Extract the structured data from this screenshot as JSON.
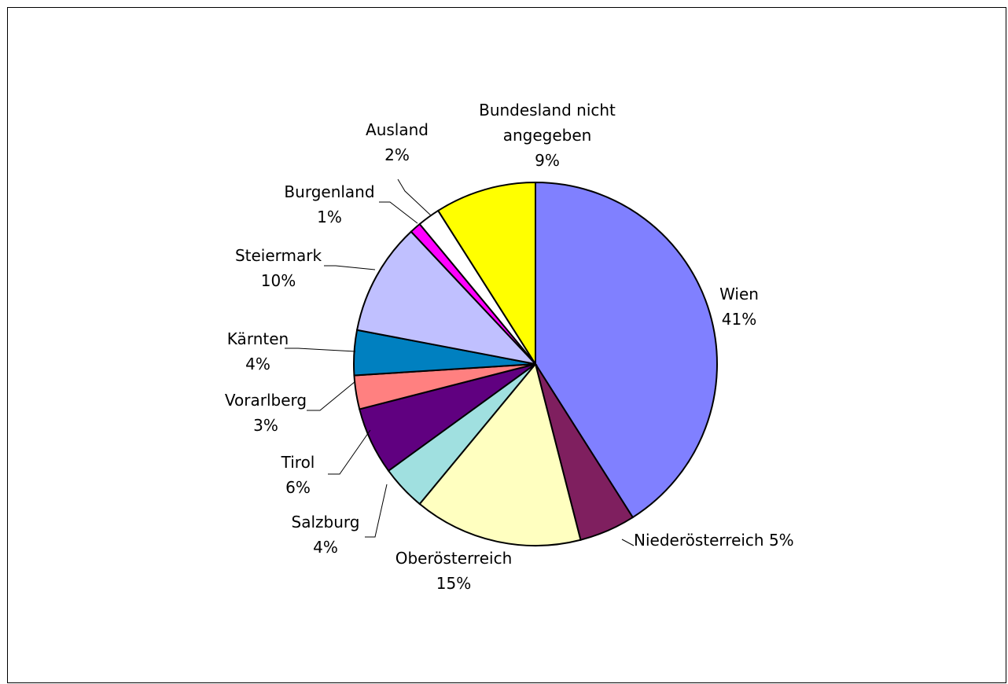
{
  "chart_data": {
    "type": "pie",
    "slices": [
      {
        "name": "Wien",
        "label_lines": [
          "Wien",
          "41%"
        ],
        "value": 41,
        "color": "#8080FF"
      },
      {
        "name": "Niederösterreich",
        "label_lines": [
          "Niederösterreich 5%"
        ],
        "value": 5,
        "color": "#7F1F5F"
      },
      {
        "name": "Oberösterreich",
        "label_lines": [
          "Oberösterreich",
          "15%"
        ],
        "value": 15,
        "color": "#FFFFC0"
      },
      {
        "name": "Salzburg",
        "label_lines": [
          "Salzburg",
          "4%"
        ],
        "value": 4,
        "color": "#A0E0E0"
      },
      {
        "name": "Tirol",
        "label_lines": [
          "Tirol",
          "6%"
        ],
        "value": 6,
        "color": "#600080"
      },
      {
        "name": "Vorarlberg",
        "label_lines": [
          "Vorarlberg",
          "3%"
        ],
        "value": 3,
        "color": "#FF8080"
      },
      {
        "name": "Kärnten",
        "label_lines": [
          "Kärnten",
          "4%"
        ],
        "value": 4,
        "color": "#0080C0"
      },
      {
        "name": "Steiermark",
        "label_lines": [
          "Steiermark",
          "10%"
        ],
        "value": 10,
        "color": "#C0C0FF"
      },
      {
        "name": "Burgenland",
        "label_lines": [
          "Burgenland",
          "1%"
        ],
        "value": 1,
        "color": "#FF00FF"
      },
      {
        "name": "Ausland",
        "label_lines": [
          "Ausland",
          "2%"
        ],
        "value": 2,
        "color": "#FFFFFF"
      },
      {
        "name": "Bundesland nicht angegeben",
        "label_lines": [
          "Bundesland nicht",
          "angegeben",
          "9%"
        ],
        "value": 9,
        "color": "#FFFF00"
      }
    ],
    "start": "top",
    "direction": "clockwise",
    "legend": "none",
    "title": ""
  }
}
